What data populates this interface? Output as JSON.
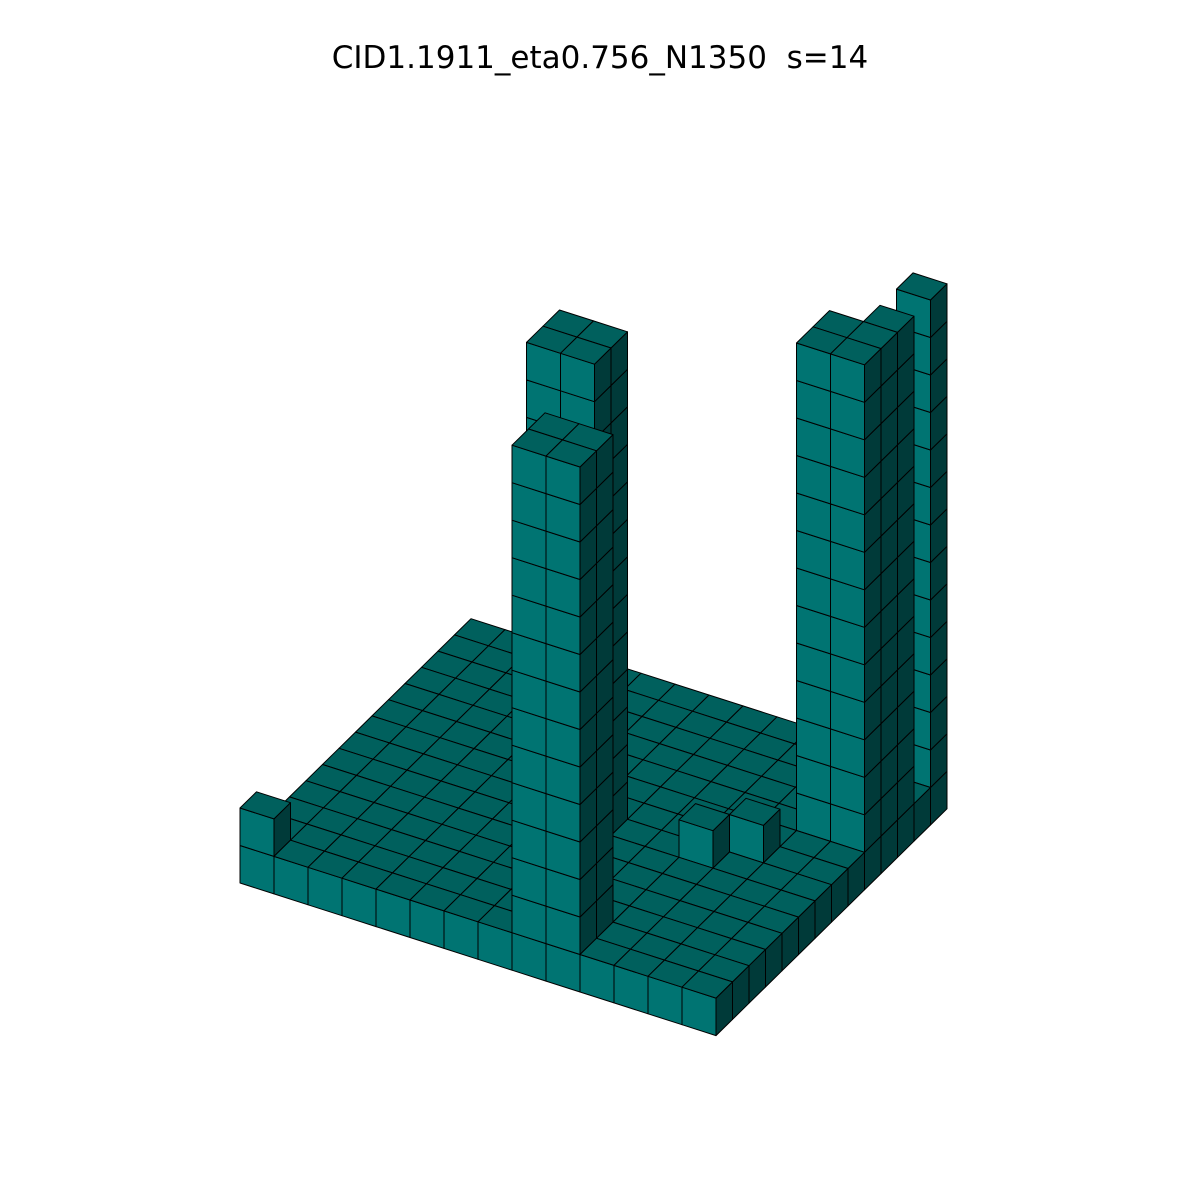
{
  "figure": {
    "title": "CID1.1911_eta0.756_N1350  s=14",
    "grid_size": 14,
    "colors": {
      "top": "#00605d",
      "front": "#007472",
      "side": "#003a39",
      "edge": "#000000",
      "background": "#ffffff"
    }
  },
  "chart_data": {
    "type": "voxel",
    "grid": {
      "nx": 14,
      "ny": 14
    },
    "base_layer_height": 1,
    "columns": [
      {
        "x": 0,
        "y": 0,
        "height": 2
      },
      {
        "x": 8,
        "y": 0,
        "height": 14
      },
      {
        "x": 9,
        "y": 0,
        "height": 14
      },
      {
        "x": 8,
        "y": 1,
        "height": 14
      },
      {
        "x": 9,
        "y": 1,
        "height": 14
      },
      {
        "x": 6,
        "y": 5,
        "height": 14
      },
      {
        "x": 7,
        "y": 5,
        "height": 14
      },
      {
        "x": 6,
        "y": 6,
        "height": 14
      },
      {
        "x": 7,
        "y": 6,
        "height": 14
      },
      {
        "x": 13,
        "y": 9,
        "height": 14
      },
      {
        "x": 13,
        "y": 10,
        "height": 14
      },
      {
        "x": 13,
        "y": 11,
        "height": 14
      },
      {
        "x": 12,
        "y": 9,
        "height": 14
      },
      {
        "x": 12,
        "y": 10,
        "height": 14
      },
      {
        "x": 13,
        "y": 13,
        "height": 14
      },
      {
        "x": 12,
        "y": 13,
        "height": 3
      },
      {
        "x": 11,
        "y": 13,
        "height": 3
      },
      {
        "x": 10,
        "y": 6,
        "height": 2
      },
      {
        "x": 11,
        "y": 7,
        "height": 2
      }
    ]
  }
}
